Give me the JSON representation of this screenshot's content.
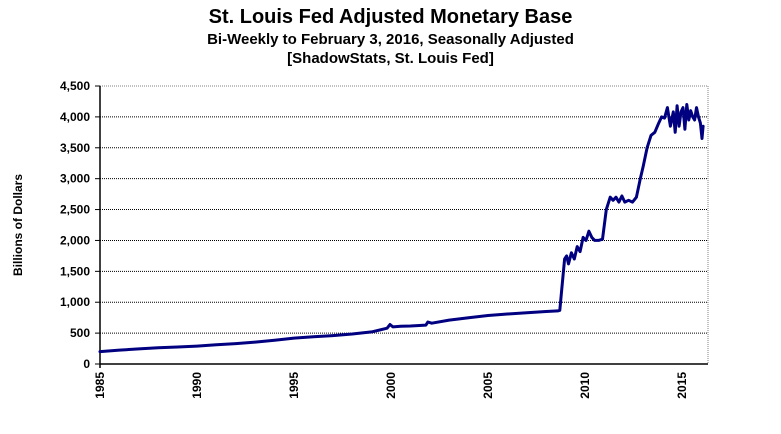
{
  "chart_data": {
    "type": "line",
    "title": "St. Louis Fed Adjusted Monetary Base",
    "subtitle": "Bi-Weekly to February 3, 2016, Seasonally Adjusted",
    "source": "[ShadowStats, St. Louis Fed]",
    "xlabel": "",
    "ylabel": "Billions  of Dollars",
    "xlim": [
      1985,
      2016.1
    ],
    "ylim": [
      0,
      4500
    ],
    "grid": true,
    "yticks": [
      0,
      500,
      1000,
      1500,
      2000,
      2500,
      3000,
      3500,
      4000,
      4500
    ],
    "ytick_labels": [
      "0",
      "500",
      "1,000",
      "1,500",
      "2,000",
      "2,500",
      "3,000",
      "3,500",
      "4,000",
      "4,500"
    ],
    "xticks": [
      1985,
      1990,
      1995,
      2000,
      2005,
      2010,
      2015
    ],
    "xtick_labels": [
      "1985",
      "1990",
      "1995",
      "2000",
      "2005",
      "2010",
      "2015"
    ],
    "line_color": "#000080",
    "series": [
      {
        "name": "Adjusted Monetary Base",
        "x": [
          1985,
          1986,
          1987,
          1988,
          1989,
          1990,
          1991,
          1992,
          1993,
          1994,
          1995,
          1996,
          1997,
          1998,
          1999,
          1999.8,
          1999.95,
          2000.1,
          2000.5,
          2001,
          2001.8,
          2001.9,
          2002.1,
          2003,
          2004,
          2005,
          2006,
          2007,
          2008,
          2008.6,
          2008.7,
          2008.8,
          2008.95,
          2009.05,
          2009.15,
          2009.3,
          2009.45,
          2009.6,
          2009.75,
          2009.9,
          2010.05,
          2010.2,
          2010.35,
          2010.5,
          2010.7,
          2010.9,
          2011.1,
          2011.3,
          2011.45,
          2011.6,
          2011.75,
          2011.9,
          2012.05,
          2012.25,
          2012.45,
          2012.65,
          2012.85,
          2013.0,
          2013.2,
          2013.4,
          2013.6,
          2013.8,
          2013.95,
          2014.1,
          2014.25,
          2014.4,
          2014.55,
          2014.65,
          2014.75,
          2014.85,
          2014.95,
          2015.05,
          2015.15,
          2015.25,
          2015.35,
          2015.45,
          2015.55,
          2015.65,
          2015.75,
          2015.85,
          2015.95,
          2016.03,
          2016.09
        ],
        "values": [
          200,
          225,
          245,
          262,
          275,
          290,
          310,
          330,
          355,
          385,
          420,
          440,
          460,
          485,
          520,
          580,
          640,
          600,
          610,
          615,
          630,
          680,
          660,
          710,
          750,
          785,
          810,
          830,
          850,
          860,
          870,
          1200,
          1700,
          1750,
          1620,
          1800,
          1700,
          1900,
          1820,
          2050,
          2000,
          2150,
          2050,
          2000,
          2000,
          2020,
          2500,
          2700,
          2650,
          2700,
          2620,
          2720,
          2620,
          2650,
          2620,
          2700,
          3000,
          3200,
          3500,
          3700,
          3750,
          3900,
          4000,
          3980,
          4150,
          3850,
          4080,
          3750,
          4180,
          3850,
          4080,
          4150,
          3800,
          4200,
          3950,
          4100,
          4000,
          3950,
          4150,
          4000,
          3900,
          3650,
          3850
        ]
      }
    ]
  }
}
